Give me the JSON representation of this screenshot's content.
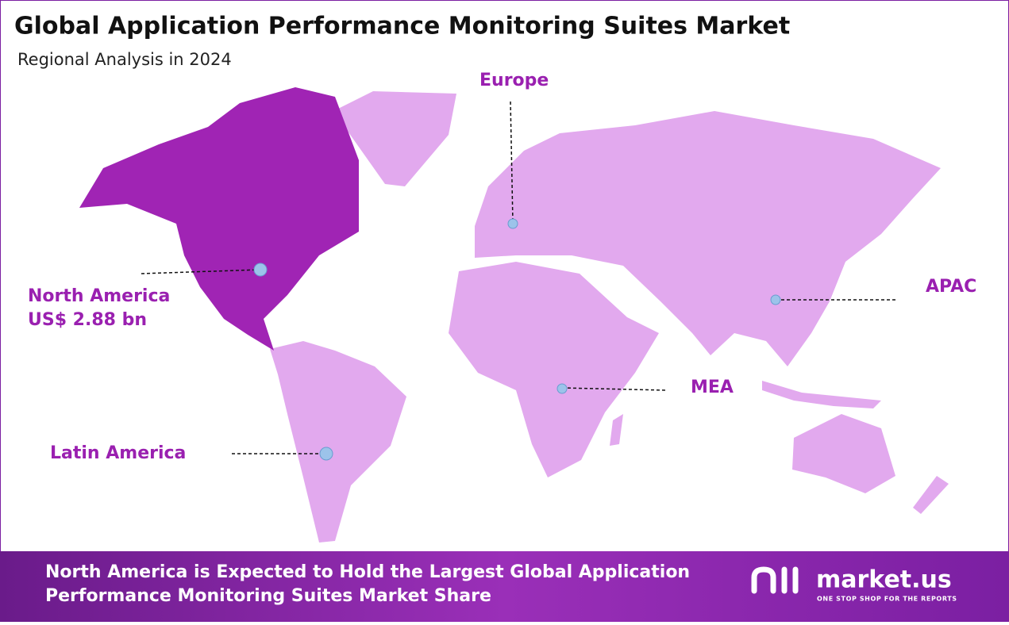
{
  "header": {
    "title": "Global Application Performance Monitoring Suites Market",
    "subtitle": "Regional Analysis in 2024"
  },
  "regions": [
    {
      "label": "North America",
      "value_text": "US$ 2.88 bn"
    },
    {
      "label": "Europe"
    },
    {
      "label": "APAC"
    },
    {
      "label": "MEA"
    },
    {
      "label": "Latin America"
    }
  ],
  "footer": {
    "lines": [
      "North America is Expected to Hold the Largest Global Application",
      "Performance Monitoring Suites Market Share"
    ],
    "brand": "market.us",
    "tagline": "ONE STOP SHOP FOR THE REPORTS"
  }
}
